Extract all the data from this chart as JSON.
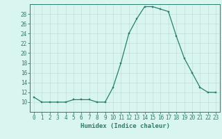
{
  "x": [
    0,
    1,
    2,
    3,
    4,
    5,
    6,
    7,
    8,
    9,
    10,
    11,
    12,
    13,
    14,
    15,
    16,
    17,
    18,
    19,
    20,
    21,
    22,
    23
  ],
  "y": [
    11,
    10,
    10,
    10,
    10,
    10.5,
    10.5,
    10.5,
    10,
    10,
    13,
    18,
    24,
    27,
    29.5,
    29.5,
    29,
    28.5,
    23.5,
    19,
    16,
    13,
    12,
    12
  ],
  "line_color": "#2a7d6e",
  "marker_color": "#2a7d6e",
  "bg_color": "#d8f5f0",
  "grid_color": "#c0ddd8",
  "xlabel": "Humidex (Indice chaleur)",
  "xlim": [
    -0.5,
    23.5
  ],
  "ylim": [
    8,
    30
  ],
  "yticks": [
    10,
    12,
    14,
    16,
    18,
    20,
    22,
    24,
    26,
    28
  ],
  "xticks": [
    0,
    1,
    2,
    3,
    4,
    5,
    6,
    7,
    8,
    9,
    10,
    11,
    12,
    13,
    14,
    15,
    16,
    17,
    18,
    19,
    20,
    21,
    22,
    23
  ],
  "xlabel_fontsize": 6.5,
  "tick_fontsize": 5.5
}
